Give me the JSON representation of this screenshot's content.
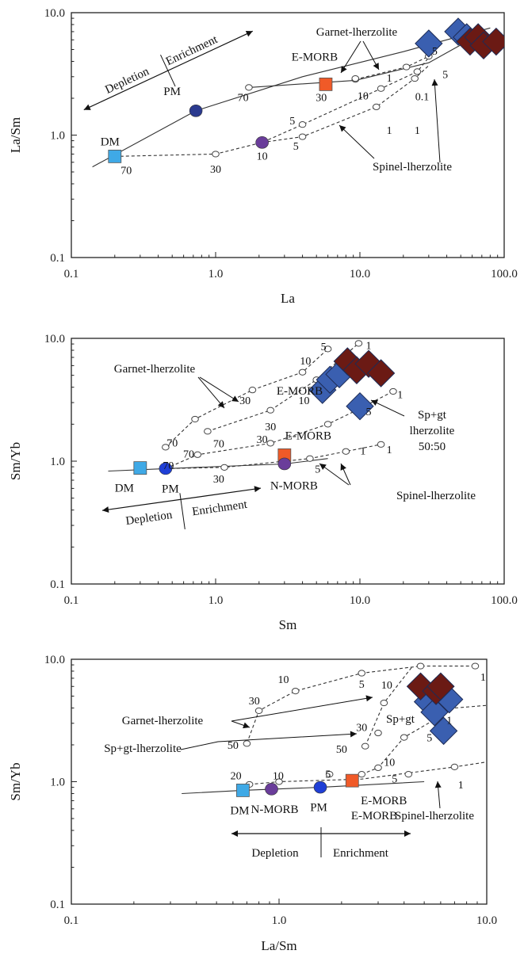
{
  "chart_data": [
    {
      "type": "scatter",
      "xlabel": "La",
      "ylabel": "La/Sm",
      "xscale": "log",
      "yscale": "log",
      "xlim": [
        0.1,
        100
      ],
      "ylim": [
        0.1,
        10
      ],
      "x_ticks": [
        "0.1",
        "1.0",
        "10.0",
        "100.0"
      ],
      "y_ticks": [
        "0.1",
        "1.0",
        "10.0"
      ],
      "reference_points": [
        {
          "label": "DM",
          "x": 0.2,
          "y": 0.67,
          "marker": "square",
          "color": "#3fa9e6"
        },
        {
          "label": "PM",
          "x": 0.73,
          "y": 1.58,
          "marker": "circle",
          "color": "#2b3a8f"
        },
        {
          "label": "E-MORB",
          "x": 5.8,
          "y": 2.6,
          "marker": "square",
          "color": "#f05a28"
        },
        {
          "label": "",
          "x": 2.1,
          "y": 0.87,
          "marker": "circle",
          "color": "#6a3d9a"
        }
      ],
      "samples": [
        {
          "x": 30,
          "y": 5.6,
          "color": "#3a5fb0"
        },
        {
          "x": 48,
          "y": 7.0,
          "color": "#3a5fb0"
        },
        {
          "x": 55,
          "y": 6.3,
          "color": "#3a5fb0"
        },
        {
          "x": 58,
          "y": 5.8,
          "color": "#6b1a14"
        },
        {
          "x": 66,
          "y": 6.3,
          "color": "#6b1a14"
        },
        {
          "x": 72,
          "y": 5.4,
          "color": "#6b1a14"
        },
        {
          "x": 88,
          "y": 5.8,
          "color": "#6b1a14"
        }
      ],
      "curves": [
        {
          "style": "solid",
          "points": [
            [
              0.14,
              0.55
            ],
            [
              0.73,
              1.58
            ],
            [
              4,
              3.0
            ],
            [
              20,
              4.8
            ],
            [
              80,
              7.5
            ]
          ]
        },
        {
          "style": "solid",
          "points": [
            [
              1.7,
              2.45
            ],
            [
              9.3,
              2.8
            ],
            [
              30,
              3.9
            ],
            [
              70,
              6.8
            ]
          ]
        },
        {
          "style": "dash",
          "points": [
            [
              9.3,
              2.85
            ],
            [
              21,
              3.6
            ],
            [
              30,
              4.4
            ],
            [
              36,
              5.5
            ]
          ]
        },
        {
          "style": "dash",
          "points": [
            [
              0.2,
              0.67
            ],
            [
              1.0,
              0.7
            ],
            [
              2.1,
              0.87
            ],
            [
              4,
              1.22
            ],
            [
              14,
              2.4
            ],
            [
              25,
              3.3
            ],
            [
              30,
              4.3
            ]
          ]
        },
        {
          "style": "dash",
          "points": [
            [
              2.1,
              0.87
            ],
            [
              4,
              0.97
            ],
            [
              13,
              1.7
            ],
            [
              24,
              2.9
            ],
            [
              30,
              3.7
            ]
          ]
        }
      ],
      "circle_markers": [
        [
          1.0,
          0.7
        ],
        [
          1.7,
          2.45
        ],
        [
          9.3,
          2.85
        ],
        [
          9.3,
          2.9
        ],
        [
          21,
          3.6
        ],
        [
          30,
          4.4
        ],
        [
          4,
          1.22
        ],
        [
          14,
          2.4
        ],
        [
          25,
          3.3
        ],
        [
          4,
          0.97
        ],
        [
          13,
          1.7
        ],
        [
          24,
          2.9
        ]
      ],
      "percent_labels": [
        {
          "text": "70",
          "x": 0.24,
          "y": 0.52
        },
        {
          "text": "30",
          "x": 1.0,
          "y": 0.53
        },
        {
          "text": "10",
          "x": 2.1,
          "y": 0.68
        },
        {
          "text": "5",
          "x": 3.4,
          "y": 1.32
        },
        {
          "text": "5",
          "x": 3.6,
          "y": 0.82
        },
        {
          "text": "70",
          "x": 1.55,
          "y": 2.05
        },
        {
          "text": "30",
          "x": 5.4,
          "y": 2.05
        },
        {
          "text": "10",
          "x": 10.5,
          "y": 2.1
        },
        {
          "text": "1",
          "x": 16,
          "y": 2.95
        },
        {
          "text": "0.1",
          "x": 27,
          "y": 2.08
        },
        {
          "text": "1",
          "x": 16,
          "y": 1.1
        },
        {
          "text": "1",
          "x": 25,
          "y": 1.1
        },
        {
          "text": "5",
          "x": 33,
          "y": 4.9
        },
        {
          "text": "5",
          "x": 39,
          "y": 3.15
        }
      ],
      "annotations": [
        "Garnet-lherzolite",
        "Spinel-lherzolite",
        "E-MORB",
        "Depletion",
        "Enrichment"
      ]
    },
    {
      "type": "scatter",
      "xlabel": "Sm",
      "ylabel": "Sm/Yb",
      "xscale": "log",
      "yscale": "log",
      "xlim": [
        0.1,
        100
      ],
      "ylim": [
        0.1,
        10
      ],
      "x_ticks": [
        "0.1",
        "1.0",
        "10.0",
        "100.0"
      ],
      "y_ticks": [
        "0.1",
        "1.0",
        "10.0"
      ],
      "reference_points": [
        {
          "label": "DM",
          "x": 0.3,
          "y": 0.88,
          "marker": "square",
          "color": "#3fa9e6"
        },
        {
          "label": "PM",
          "x": 0.45,
          "y": 0.87,
          "marker": "circle",
          "color": "#1f3fd6"
        },
        {
          "label": "E-MORB",
          "x": 3.0,
          "y": 1.12,
          "marker": "square",
          "color": "#f05a28"
        },
        {
          "label": "N-MORB",
          "x": 3.0,
          "y": 0.95,
          "marker": "circle",
          "color": "#6a3d9a"
        }
      ],
      "samples": [
        {
          "x": 5.5,
          "y": 3.8,
          "color": "#3a5fb0"
        },
        {
          "x": 6.2,
          "y": 4.6,
          "color": "#3a5fb0"
        },
        {
          "x": 7.2,
          "y": 5.1,
          "color": "#3a5fb0"
        },
        {
          "x": 10,
          "y": 2.8,
          "color": "#3a5fb0"
        },
        {
          "x": 8.2,
          "y": 6.5,
          "color": "#6b1a14"
        },
        {
          "x": 9.5,
          "y": 5.5,
          "color": "#6b1a14"
        },
        {
          "x": 11.5,
          "y": 6.2,
          "color": "#6b1a14"
        },
        {
          "x": 14,
          "y": 5.2,
          "color": "#6b1a14"
        }
      ],
      "curves": [
        {
          "style": "solid",
          "points": [
            [
              0.18,
              0.83
            ],
            [
              0.45,
              0.87
            ],
            [
              3.0,
              0.95
            ],
            [
              6,
              1.05
            ]
          ]
        },
        {
          "style": "dash",
          "points": [
            [
              0.45,
              1.3
            ],
            [
              0.72,
              2.2
            ],
            [
              1.8,
              3.8
            ],
            [
              4,
              5.3
            ],
            [
              6,
              8.2
            ]
          ]
        },
        {
          "style": "dash",
          "points": [
            [
              0.88,
              1.75
            ],
            [
              2.4,
              2.6
            ],
            [
              5,
              4.6
            ],
            [
              9.8,
              9.1
            ]
          ]
        },
        {
          "style": "dash",
          "points": [
            [
              0.45,
              0.87
            ],
            [
              0.75,
              1.13
            ],
            [
              2.4,
              1.4
            ],
            [
              6,
              2.0
            ],
            [
              9.5,
              2.6
            ],
            [
              17,
              3.7
            ]
          ]
        },
        {
          "style": "dash",
          "points": [
            [
              0.45,
              0.87
            ],
            [
              1.15,
              0.89
            ],
            [
              4.5,
              1.05
            ],
            [
              8,
              1.2
            ],
            [
              14,
              1.37
            ]
          ]
        }
      ],
      "circle_markers": [
        [
          0.45,
          1.3
        ],
        [
          0.72,
          2.2
        ],
        [
          1.8,
          3.8
        ],
        [
          4,
          5.3
        ],
        [
          6,
          8.2
        ],
        [
          0.88,
          1.75
        ],
        [
          2.4,
          2.6
        ],
        [
          5,
          4.6
        ],
        [
          9.8,
          9.1
        ],
        [
          0.75,
          1.13
        ],
        [
          2.4,
          1.4
        ],
        [
          6,
          2.0
        ],
        [
          17,
          3.7
        ],
        [
          1.15,
          0.89
        ],
        [
          4.5,
          1.05
        ],
        [
          8,
          1.2
        ],
        [
          14,
          1.37
        ]
      ],
      "percent_labels": [
        {
          "text": "5",
          "x": 5.6,
          "y": 8.6
        },
        {
          "text": "1",
          "x": 11.5,
          "y": 8.8
        },
        {
          "text": "10",
          "x": 4.2,
          "y": 6.6
        },
        {
          "text": "30",
          "x": 1.6,
          "y": 3.15
        },
        {
          "text": "30",
          "x": 2.4,
          "y": 1.92
        },
        {
          "text": "70",
          "x": 0.5,
          "y": 1.42
        },
        {
          "text": "70",
          "x": 1.05,
          "y": 1.4
        },
        {
          "text": "70",
          "x": 0.65,
          "y": 1.15
        },
        {
          "text": "70",
          "x": 0.47,
          "y": 0.93
        },
        {
          "text": "30",
          "x": 2.1,
          "y": 1.52
        },
        {
          "text": "30",
          "x": 1.05,
          "y": 0.72
        },
        {
          "text": "10",
          "x": 4.1,
          "y": 3.15
        },
        {
          "text": "5",
          "x": 11.5,
          "y": 2.55
        },
        {
          "text": "1",
          "x": 19,
          "y": 3.5
        },
        {
          "text": "5",
          "x": 5.1,
          "y": 0.87
        },
        {
          "text": "1",
          "x": 10.5,
          "y": 1.22
        },
        {
          "text": "1",
          "x": 16,
          "y": 1.25
        }
      ],
      "annotations": [
        "Garnet-lherzolite",
        "E-MORB",
        "Sp+gt",
        "lherzolite",
        "50:50",
        "N-MORB",
        "Spinel-lherzolite",
        "Depletion",
        "Enrichment"
      ]
    },
    {
      "type": "scatter",
      "xlabel": "La/Sm",
      "ylabel": "Sm/Yb",
      "xscale": "log",
      "yscale": "log",
      "xlim": [
        0.1,
        10
      ],
      "ylim": [
        0.1,
        10
      ],
      "x_ticks": [
        "0.1",
        "1.0",
        "10.0"
      ],
      "y_ticks": [
        "0.1",
        "1.0",
        "10.0"
      ],
      "reference_points": [
        {
          "label": "DM",
          "x": 0.67,
          "y": 0.85,
          "marker": "square",
          "color": "#3fa9e6"
        },
        {
          "label": "N-MORB",
          "x": 0.92,
          "y": 0.87,
          "marker": "circle",
          "color": "#6a3d9a"
        },
        {
          "label": "PM",
          "x": 1.58,
          "y": 0.9,
          "marker": "circle",
          "color": "#1f3fd6"
        },
        {
          "label": "E-MORB",
          "x": 2.25,
          "y": 1.02,
          "marker": "square",
          "color": "#f05a28"
        }
      ],
      "samples": [
        {
          "x": 5.2,
          "y": 4.5,
          "color": "#3a5fb0"
        },
        {
          "x": 5.6,
          "y": 3.7,
          "color": "#3a5fb0"
        },
        {
          "x": 6.6,
          "y": 4.7,
          "color": "#3a5fb0"
        },
        {
          "x": 6.2,
          "y": 2.6,
          "color": "#3a5fb0"
        },
        {
          "x": 4.8,
          "y": 6.0,
          "color": "#6b1a14"
        },
        {
          "x": 5.7,
          "y": 5.5,
          "color": "#6b1a14"
        },
        {
          "x": 6.0,
          "y": 6.0,
          "color": "#6b1a14"
        }
      ],
      "curves": [
        {
          "style": "solid",
          "points": [
            [
              0.34,
              0.8
            ],
            [
              0.67,
              0.85
            ],
            [
              1.58,
              0.9
            ],
            [
              5,
              1.0
            ]
          ]
        },
        {
          "style": "dash",
          "points": [
            [
              0.7,
              2.05
            ],
            [
              0.8,
              3.8
            ],
            [
              1.2,
              5.5
            ],
            [
              2.5,
              7.7
            ],
            [
              4.8,
              8.8
            ],
            [
              8.8,
              8.8
            ]
          ]
        },
        {
          "style": "dash",
          "points": [
            [
              2.6,
              1.95
            ],
            [
              3.2,
              4.4
            ],
            [
              4.4,
              8.8
            ]
          ]
        },
        {
          "style": "dash",
          "points": [
            [
              2.5,
              1.15
            ],
            [
              3.0,
              1.3
            ],
            [
              4.0,
              2.3
            ],
            [
              7.0,
              4.0
            ],
            [
              10,
              4.2
            ]
          ]
        },
        {
          "style": "dash",
          "points": [
            [
              0.72,
              0.95
            ],
            [
              1.0,
              1.0
            ],
            [
              2.5,
              1.05
            ],
            [
              7.0,
              1.32
            ],
            [
              10,
              1.45
            ]
          ]
        }
      ],
      "circle_markers": [
        [
          0.7,
          2.05
        ],
        [
          0.8,
          3.8
        ],
        [
          1.2,
          5.5
        ],
        [
          2.5,
          7.7
        ],
        [
          4.8,
          8.8
        ],
        [
          8.8,
          8.8
        ],
        [
          2.6,
          1.95
        ],
        [
          3.0,
          2.5
        ],
        [
          3.2,
          4.4
        ],
        [
          2.5,
          1.15
        ],
        [
          3.0,
          1.3
        ],
        [
          4.0,
          2.3
        ],
        [
          0.72,
          0.95
        ],
        [
          1.0,
          1.0
        ],
        [
          1.75,
          1.15
        ],
        [
          4.2,
          1.15
        ],
        [
          7.0,
          1.32
        ]
      ],
      "percent_labels": [
        {
          "text": "10",
          "x": 1.05,
          "y": 6.9
        },
        {
          "text": "30",
          "x": 0.76,
          "y": 4.6
        },
        {
          "text": "50",
          "x": 0.6,
          "y": 2.0
        },
        {
          "text": "5",
          "x": 2.5,
          "y": 6.3
        },
        {
          "text": "10",
          "x": 3.3,
          "y": 6.2
        },
        {
          "text": "30",
          "x": 2.5,
          "y": 2.8
        },
        {
          "text": "50",
          "x": 2.0,
          "y": 1.85
        },
        {
          "text": "10",
          "x": 3.4,
          "y": 1.45
        },
        {
          "text": "5",
          "x": 5.3,
          "y": 2.3
        },
        {
          "text": "1",
          "x": 6.6,
          "y": 3.2
        },
        {
          "text": "1",
          "x": 9.6,
          "y": 7.2
        },
        {
          "text": "20",
          "x": 0.62,
          "y": 1.13
        },
        {
          "text": "10",
          "x": 0.99,
          "y": 1.13
        },
        {
          "text": "5",
          "x": 1.72,
          "y": 1.16
        },
        {
          "text": "5",
          "x": 3.6,
          "y": 1.06
        },
        {
          "text": "1",
          "x": 7.5,
          "y": 0.95
        }
      ],
      "annotations": [
        "Garnet-lherzolite",
        "Sp+gt",
        "Sp+gt-lherzolite",
        "E-MORB",
        "N-MORB",
        "Spinel-lherzolite",
        "Depletion",
        "Enrichment"
      ]
    }
  ]
}
